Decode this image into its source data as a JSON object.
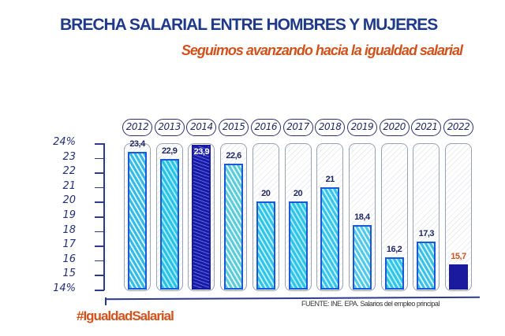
{
  "header": {
    "title": "BRECHA SALARIAL ENTRE HOMBRES Y MUJERES",
    "subtitle": "Seguimos avanzando hacia la igualdad salarial"
  },
  "footer": {
    "source": "FUENTE: INE. EPA. Salarios del empleo principal",
    "hashtag": "#IgualdadSalarial"
  },
  "colors": {
    "title": "#1f3a8a",
    "accent": "#d2521c",
    "bar_cyan": "#2ec4e8",
    "bar_light": "#4fc8ea",
    "bar_dark": "#1a1aa8",
    "bar_border": "#1a5ad8"
  },
  "chart_data": {
    "type": "bar",
    "title": "BRECHA SALARIAL ENTRE HOMBRES Y MUJERES",
    "subtitle": "Seguimos avanzando hacia la igualdad salarial",
    "xlabel": "",
    "ylabel": "",
    "categories": [
      "2012",
      "2013",
      "2014",
      "2015",
      "2016",
      "2017",
      "2018",
      "2019",
      "2020",
      "2021",
      "2022"
    ],
    "values": [
      23.4,
      22.9,
      23.9,
      22.6,
      20,
      20,
      21,
      18.4,
      16.2,
      17.3,
      15.7
    ],
    "value_labels": [
      "23,4",
      "22,9",
      "23,9",
      "22,6",
      "20",
      "20",
      "21",
      "18,4",
      "16,2",
      "17,3",
      "15,7"
    ],
    "ylim": [
      14,
      24
    ],
    "yticks": [
      "14%",
      "15",
      "16",
      "17",
      "18",
      "19",
      "20",
      "21",
      "22",
      "23",
      "24%"
    ],
    "highlighted": [
      "2014",
      "2022"
    ],
    "grid": false,
    "legend": null,
    "annotations": [
      "FUENTE: INE. EPA. Salarios del empleo principal",
      "#IgualdadSalarial"
    ]
  }
}
